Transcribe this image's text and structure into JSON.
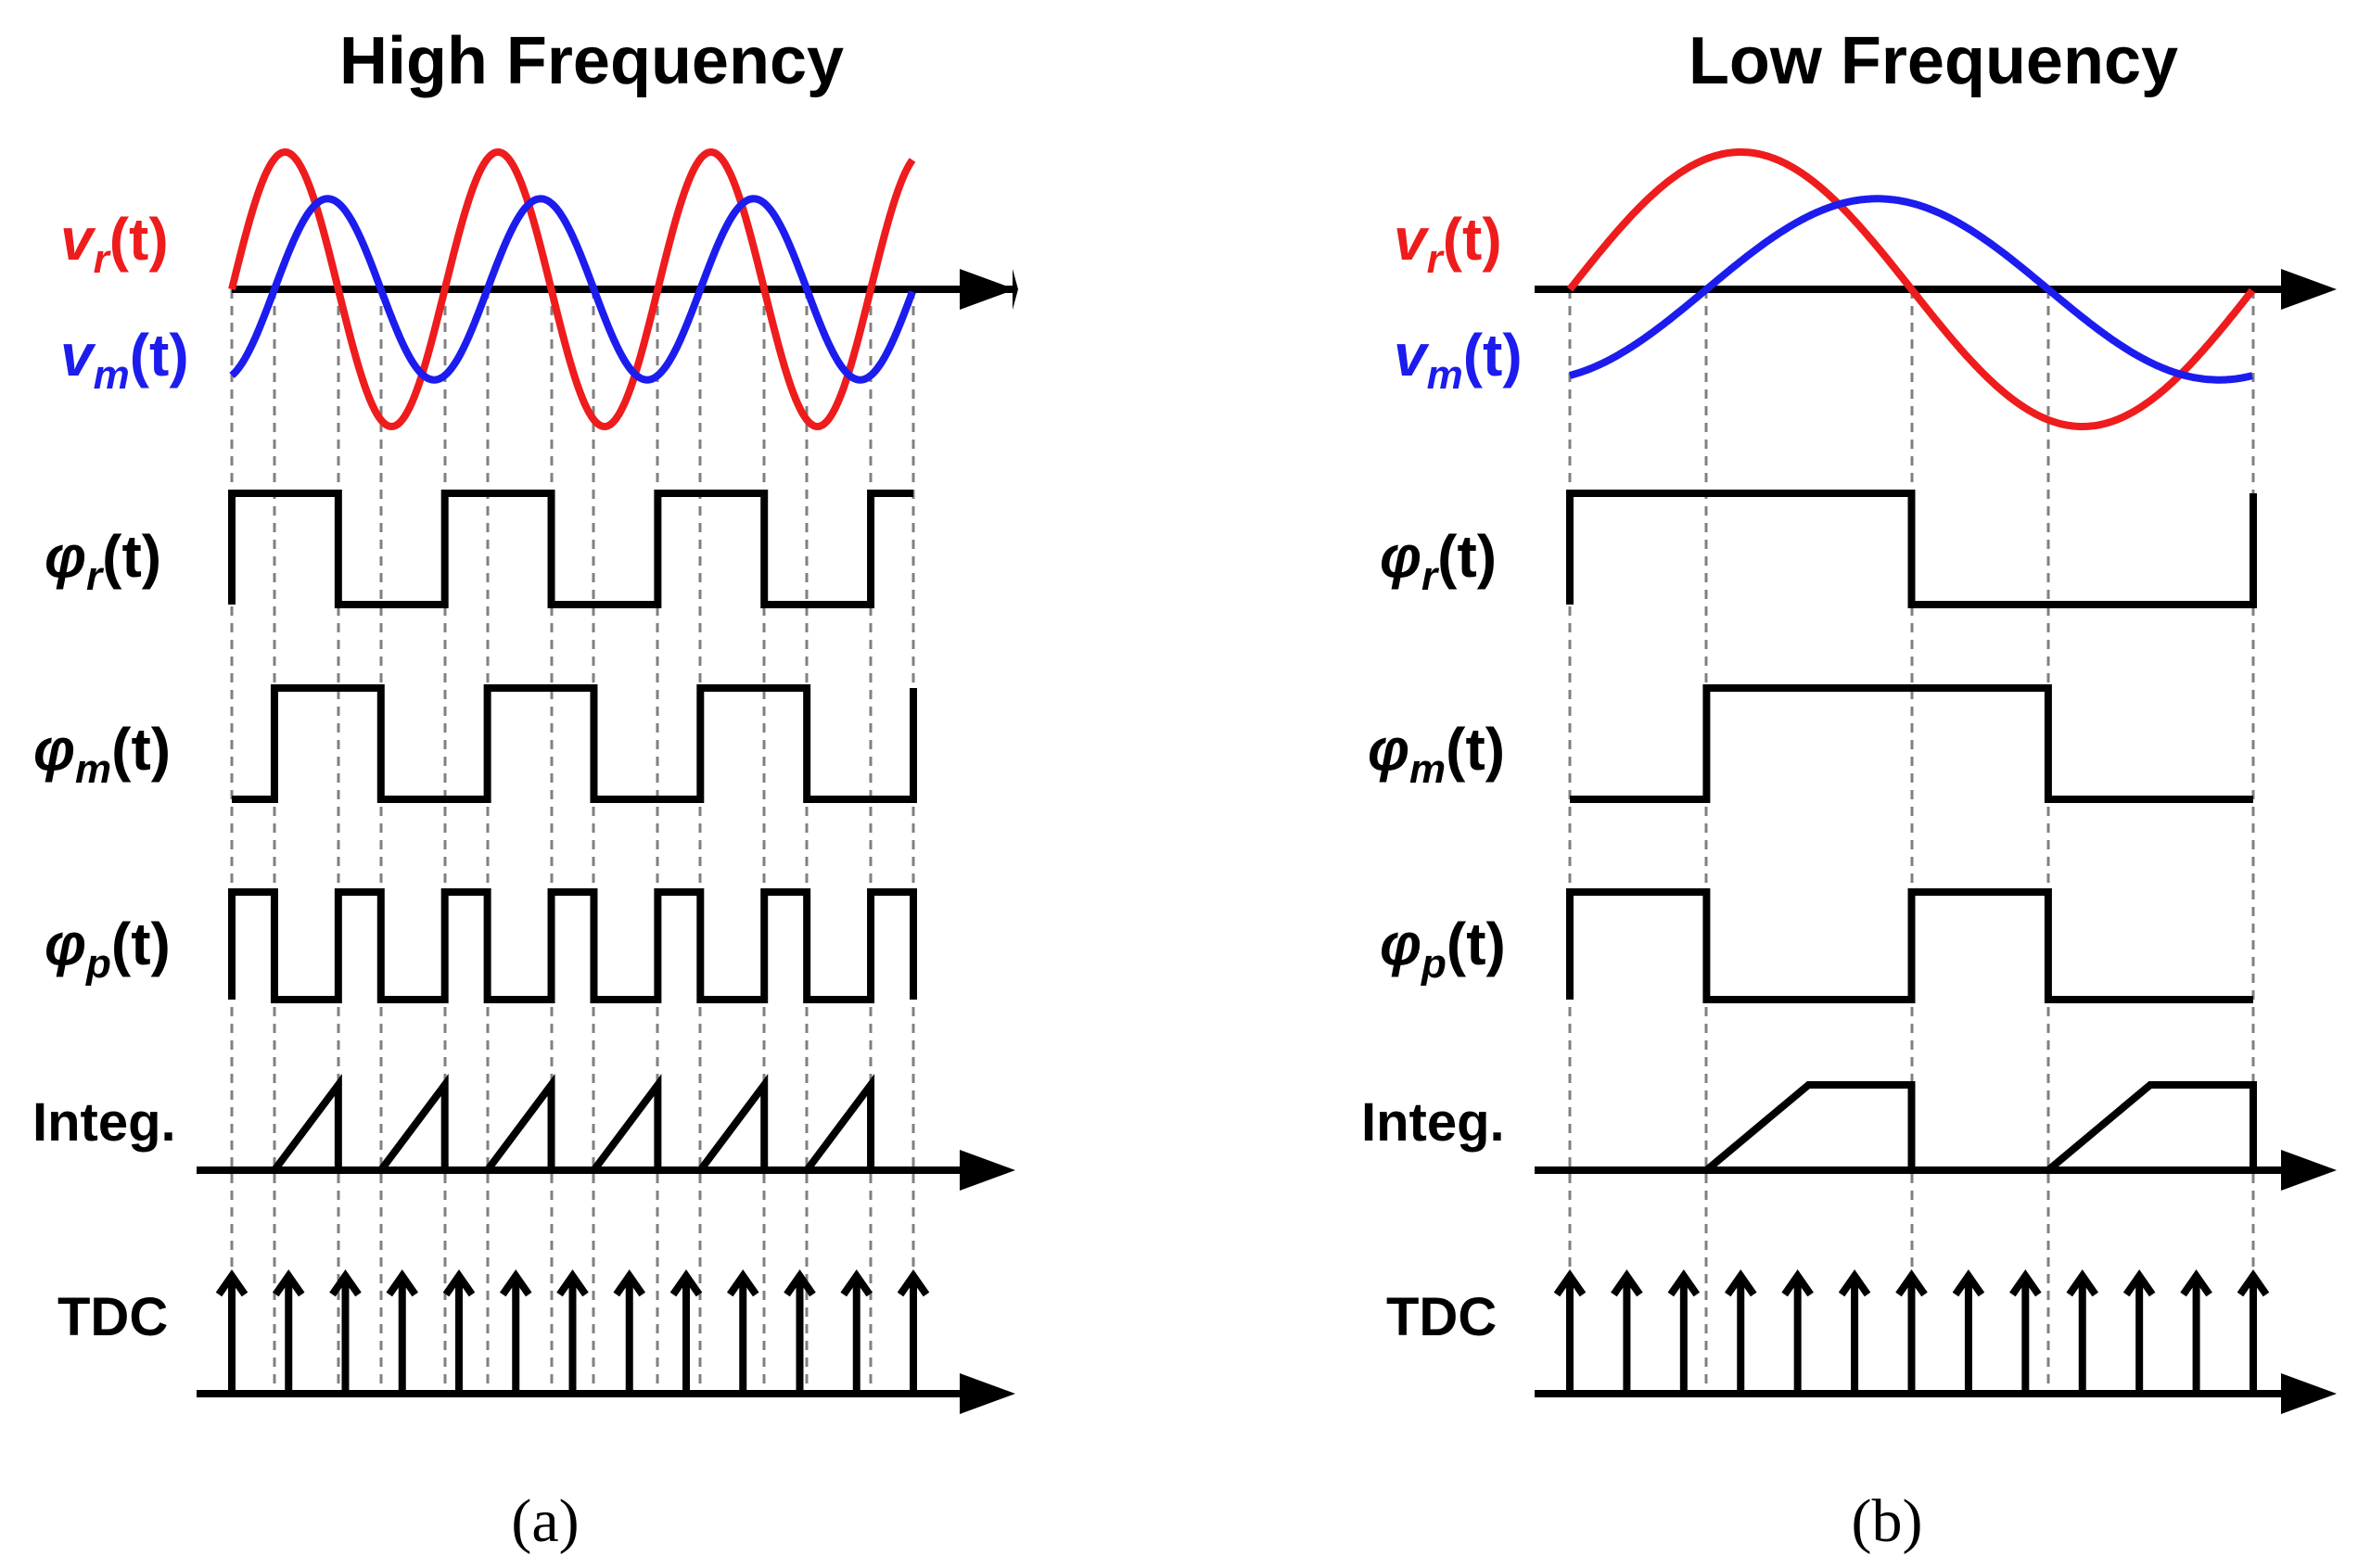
{
  "panels": [
    {
      "title": "High Frequency",
      "caption": "(a)",
      "labels": {
        "vr": {
          "sym": "v",
          "sub": "r",
          "arg": "(t)",
          "color": "#ee1c1c"
        },
        "vm": {
          "sym": "v",
          "sub": "m",
          "arg": "(t)",
          "color": "#1c1cee"
        },
        "phir": {
          "sym": "φ",
          "sub": "r",
          "arg": "(t)"
        },
        "phim": {
          "sym": "φ",
          "sub": "m",
          "arg": "(t)"
        },
        "phip": {
          "sym": "φ",
          "sub": "p",
          "arg": "(t)"
        },
        "integ": "Integ.",
        "tdc": "TDC"
      },
      "cycles": 3.2
    },
    {
      "title": "Low Frequency",
      "caption": "(b)",
      "labels": {
        "vr": {
          "sym": "v",
          "sub": "r",
          "arg": "(t)",
          "color": "#ee1c1c"
        },
        "vm": {
          "sym": "v",
          "sub": "m",
          "arg": "(t)",
          "color": "#1c1cee"
        },
        "phir": {
          "sym": "φ",
          "sub": "r",
          "arg": "(t)"
        },
        "phim": {
          "sym": "φ",
          "sub": "m",
          "arg": "(t)"
        },
        "phip": {
          "sym": "φ",
          "sub": "p",
          "arg": "(t)"
        },
        "integ": "Integ.",
        "tdc": "TDC"
      },
      "cycles": 1.0
    }
  ],
  "colors": {
    "vr": "#ee1c1c",
    "vm": "#1c1cee",
    "ink": "#000000",
    "guide": "#808080"
  }
}
